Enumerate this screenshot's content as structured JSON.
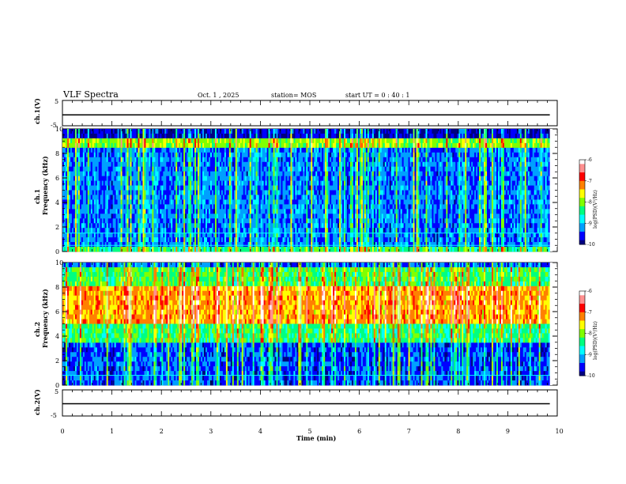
{
  "header": {
    "title": "VLF Spectra",
    "date": "Oct. 1 , 2025",
    "station": "station= MOS",
    "start": "start  UT =   0 : 40 : 1"
  },
  "chart_data": [
    {
      "type": "line",
      "panel": "ch1-waveform",
      "ylabel": "ch.1(V)",
      "ylim": [
        -5,
        5
      ],
      "yticks": [
        "5",
        "-5"
      ],
      "xlim": [
        0,
        10
      ],
      "series": [
        {
          "x": [
            0,
            9.85
          ],
          "values": [
            -0.7,
            -0.7
          ]
        }
      ]
    },
    {
      "type": "heatmap",
      "panel": "ch1-spectrogram",
      "ylabel": "ch.1\nFrequency (kHz)",
      "ylim": [
        0,
        10
      ],
      "yticks": [
        "0",
        "2",
        "4",
        "6",
        "8",
        "10"
      ],
      "xlim": [
        0,
        9.85
      ],
      "colorbar": {
        "label": "log(PSD)(V²/Hz)",
        "range": [
          -10,
          -6
        ],
        "ticks": [
          "-6",
          "-7",
          "-8",
          "-9",
          "-10"
        ]
      },
      "description_bands": {
        "strong_band_khz": [
          8.5,
          10
        ],
        "broadband_impulses": true,
        "lines_khz": [
          0.5,
          1.5
        ]
      }
    },
    {
      "type": "heatmap",
      "panel": "ch2-spectrogram",
      "ylabel": "ch.2\nFrequency (kHz)",
      "ylim": [
        0,
        10
      ],
      "yticks": [
        "0",
        "2",
        "4",
        "6",
        "8",
        "10"
      ],
      "xlim": [
        0,
        9.85
      ],
      "colorbar": {
        "label": "log(PSD)(V²/Hz)",
        "range": [
          -10,
          -6
        ],
        "ticks": [
          "-6",
          "-7",
          "-8",
          "-9",
          "-10"
        ]
      },
      "description_bands": {
        "strong_band_khz": [
          5,
          8
        ],
        "broadband_impulses": true,
        "lines_khz": [
          0.8
        ]
      }
    },
    {
      "type": "line",
      "panel": "ch2-waveform",
      "ylabel": "ch.2(V)",
      "ylim": [
        -5,
        5
      ],
      "yticks": [
        "5",
        "-5"
      ],
      "xlim": [
        0,
        10
      ],
      "series": [
        {
          "x": [
            0,
            9.85
          ],
          "values": [
            -0.3,
            -0.3
          ]
        }
      ]
    }
  ],
  "xaxis": {
    "label": "Time  (min)",
    "ticks": [
      "0",
      "1",
      "2",
      "3",
      "4",
      "5",
      "6",
      "7",
      "8",
      "9",
      "10"
    ],
    "range": [
      0,
      10
    ]
  },
  "colors": {
    "cmap": [
      "#000080",
      "#0000ff",
      "#00a0ff",
      "#00ffff",
      "#00ff80",
      "#80ff00",
      "#ffff00",
      "#ff8000",
      "#ff0000",
      "#ff9090",
      "#ffffff"
    ]
  }
}
